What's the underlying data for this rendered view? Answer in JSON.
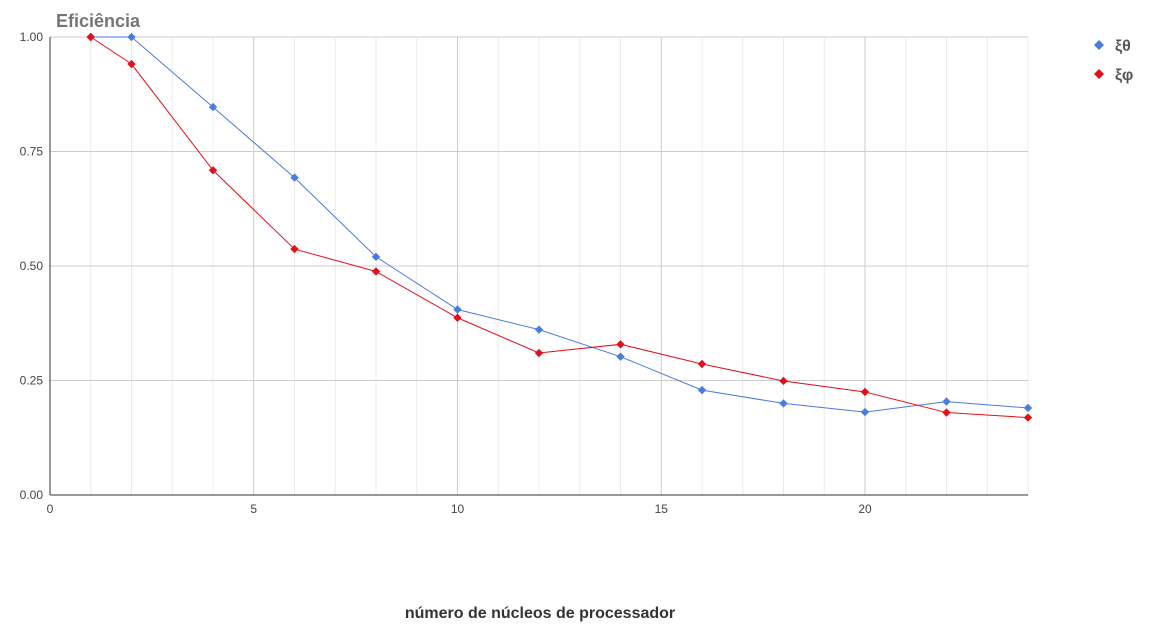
{
  "chart_data": {
    "type": "line",
    "title": "Eficiência",
    "xlabel": "número de núcleos de processador",
    "ylabel": "",
    "xlim": [
      0,
      24
    ],
    "ylim": [
      0,
      1
    ],
    "x_ticks": [
      0,
      5,
      10,
      15,
      20
    ],
    "y_ticks": [
      0.0,
      0.25,
      0.5,
      0.75,
      1.0
    ],
    "x_tick_labels": [
      "0",
      "5",
      "10",
      "15",
      "20"
    ],
    "y_tick_labels": [
      "0.00",
      "0.25",
      "0.50",
      "0.75",
      "1.00"
    ],
    "grid": true,
    "legend_position": "top-right",
    "series": [
      {
        "name": "ξθ",
        "color": "#4a7be0",
        "x": [
          1,
          2,
          4,
          6,
          8,
          10,
          12,
          14,
          16,
          18,
          20,
          22,
          24
        ],
        "values": [
          1.0,
          1.0,
          0.847,
          0.693,
          0.52,
          0.405,
          0.361,
          0.302,
          0.229,
          0.2,
          0.181,
          0.204,
          0.19
        ]
      },
      {
        "name": "ξφ",
        "color": "#e3101c",
        "x": [
          1,
          2,
          4,
          6,
          8,
          10,
          12,
          14,
          16,
          18,
          20,
          22,
          24
        ],
        "values": [
          1.0,
          0.941,
          0.709,
          0.537,
          0.488,
          0.387,
          0.31,
          0.329,
          0.286,
          0.249,
          0.225,
          0.18,
          0.169
        ]
      }
    ]
  }
}
